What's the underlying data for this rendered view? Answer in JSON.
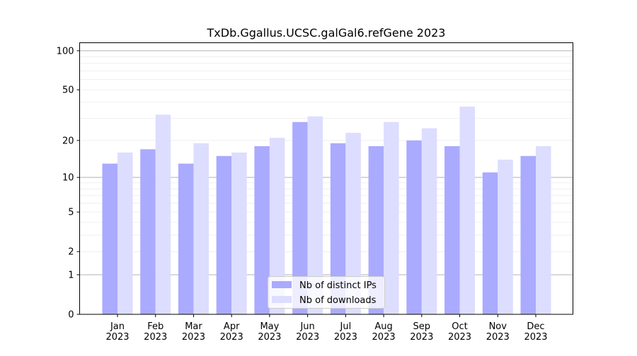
{
  "chart_data": {
    "type": "bar",
    "title": "TxDb.Ggallus.UCSC.galGal6.refGene 2023",
    "xlabel": "",
    "ylabel": "",
    "yscale": "log(1+x)",
    "ylim": [
      0,
      116
    ],
    "yticks": [
      0,
      1,
      2,
      5,
      10,
      20,
      50,
      100
    ],
    "categories": [
      "Jan\n2023",
      "Feb\n2023",
      "Mar\n2023",
      "Apr\n2023",
      "May\n2023",
      "Jun\n2023",
      "Jul\n2023",
      "Aug\n2023",
      "Sep\n2023",
      "Oct\n2023",
      "Nov\n2023",
      "Dec\n2023"
    ],
    "series": [
      {
        "name": "Nb of distinct IPs",
        "color": "#aaaaff",
        "values": [
          13,
          17,
          13,
          15,
          18,
          28,
          19,
          18,
          20,
          18,
          11,
          15
        ]
      },
      {
        "name": "Nb of downloads",
        "color": "#ddddff",
        "values": [
          16,
          32,
          19,
          16,
          21,
          31,
          23,
          28,
          25,
          37,
          14,
          18
        ]
      }
    ],
    "legend": "bottom-center",
    "grid": true
  }
}
